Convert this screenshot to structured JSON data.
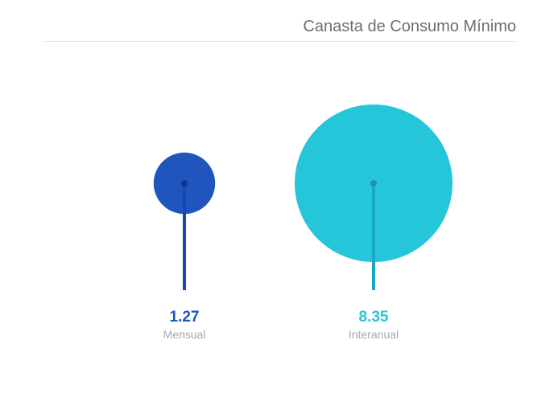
{
  "chart_data": {
    "type": "bubble",
    "title": "Canasta de Consumo Mínimo",
    "grid": false,
    "legend": "none",
    "series": [
      {
        "label": "Mensual",
        "value": 1.27,
        "display": "1.27",
        "color": "#1f55bd",
        "stem_color": "#1648b0",
        "dot_color": "#0f3491"
      },
      {
        "label": "Interanual",
        "value": 8.35,
        "display": "8.35",
        "color": "#26c6da",
        "stem_color": "#1aa6c8",
        "dot_color": "#1494bb"
      }
    ]
  }
}
